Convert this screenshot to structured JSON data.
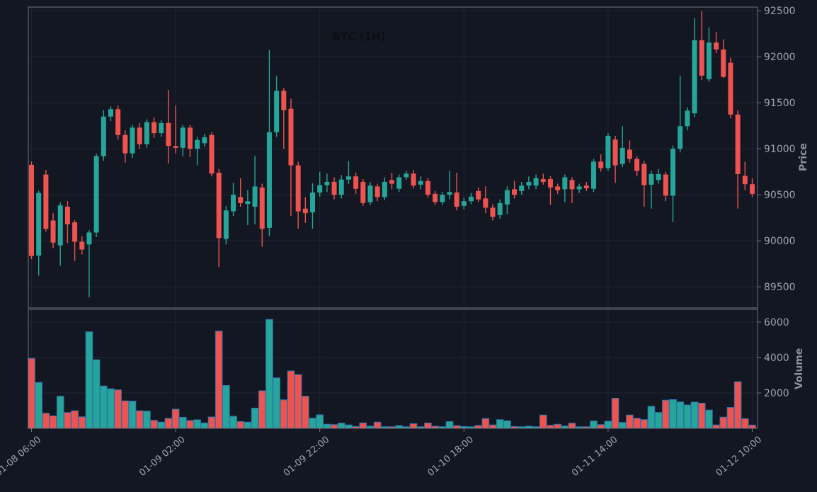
{
  "chart_data": {
    "type": "candlestick",
    "title": "BTC (1H)",
    "timeframe": "1H",
    "symbol": "BTC",
    "legend": "none",
    "grid": "on",
    "colors": {
      "background": "#131722",
      "up": "#26a69a",
      "down": "#ef5350",
      "grid": "#1f2434",
      "spine": "#6e7381",
      "tick_label": "#9fa3ad",
      "axis_label": "#8d919c",
      "title_color": "#0c0e13",
      "volume_bar_edge": "#2d72ae"
    },
    "price_axis": {
      "label": "Price",
      "side": "right",
      "ticks": [
        89500,
        90000,
        90500,
        91000,
        91500,
        92000,
        92500
      ],
      "ylim": [
        89270,
        92540
      ]
    },
    "volume_axis": {
      "label": "Volume",
      "side": "right",
      "ticks": [
        2000,
        4000,
        6000
      ],
      "ylim": [
        0,
        6720
      ]
    },
    "x_axis": {
      "tick_indices": [
        0,
        20,
        40,
        60,
        80,
        100
      ],
      "tick_labels": [
        "01-08 06:00",
        "01-09 02:00",
        "01-09 22:00",
        "01-10 18:00",
        "01-11 14:00",
        "01-12 10:00"
      ],
      "rotation_deg": -40
    },
    "candles_format": [
      "open",
      "high",
      "low",
      "close",
      "volume"
    ],
    "candles": [
      [
        90825,
        90860,
        89800,
        89835,
        3950
      ],
      [
        89840,
        90545,
        89620,
        90520,
        2590
      ],
      [
        90720,
        90770,
        90100,
        90130,
        850
      ],
      [
        90220,
        90300,
        89920,
        89980,
        700
      ],
      [
        89950,
        90420,
        89730,
        90385,
        1810
      ],
      [
        90370,
        90430,
        89975,
        90180,
        890
      ],
      [
        90200,
        90225,
        89780,
        89990,
        990
      ],
      [
        89990,
        90050,
        89850,
        89905,
        650
      ],
      [
        89960,
        90115,
        89385,
        90090,
        5450
      ],
      [
        90090,
        90945,
        90040,
        90920,
        3870
      ],
      [
        90920,
        91420,
        90870,
        91350,
        2390
      ],
      [
        91350,
        91460,
        91300,
        91430,
        2230
      ],
      [
        91430,
        91470,
        91100,
        91150,
        2170
      ],
      [
        91150,
        91200,
        90850,
        90950,
        1550
      ],
      [
        90950,
        91260,
        90900,
        91230,
        1530
      ],
      [
        91230,
        91280,
        91000,
        91050,
        990
      ],
      [
        91050,
        91320,
        91010,
        91290,
        970
      ],
      [
        91290,
        91340,
        91120,
        91170,
        450
      ],
      [
        91170,
        91310,
        91130,
        91280,
        350
      ],
      [
        91280,
        91640,
        90840,
        91030,
        560
      ],
      [
        91030,
        91470,
        90950,
        91010,
        1080
      ],
      [
        91010,
        91260,
        90920,
        91230,
        620
      ],
      [
        91230,
        91260,
        90910,
        91000,
        440
      ],
      [
        91000,
        91130,
        90820,
        91095,
        480
      ],
      [
        91060,
        91160,
        91020,
        91125,
        300
      ],
      [
        91150,
        91180,
        90700,
        90730,
        640
      ],
      [
        90740,
        90780,
        89715,
        90030,
        5490
      ],
      [
        90020,
        90380,
        89960,
        90330,
        2420
      ],
      [
        90320,
        90630,
        90270,
        90500,
        680
      ],
      [
        90475,
        90680,
        90370,
        90410,
        380
      ],
      [
        90400,
        90550,
        90170,
        90430,
        350
      ],
      [
        90370,
        90920,
        90180,
        90590,
        1140
      ],
      [
        90580,
        90620,
        89935,
        90130,
        2120
      ],
      [
        90140,
        92075,
        90050,
        91180,
        6150
      ],
      [
        91180,
        91790,
        91130,
        91630,
        2850
      ],
      [
        91630,
        91660,
        91000,
        91420,
        1610
      ],
      [
        91435,
        91545,
        90270,
        90820,
        3240
      ],
      [
        90820,
        90860,
        90130,
        90320,
        3030
      ],
      [
        90350,
        90475,
        90195,
        90300,
        1810
      ],
      [
        90310,
        90625,
        90130,
        90525,
        570
      ],
      [
        90525,
        90750,
        90480,
        90605,
        760
      ],
      [
        90605,
        90730,
        90530,
        90640,
        230
      ],
      [
        90640,
        90690,
        90450,
        90500,
        210
      ],
      [
        90500,
        90715,
        90460,
        90665,
        290
      ],
      [
        90665,
        90865,
        90620,
        90700,
        190
      ],
      [
        90700,
        90740,
        90510,
        90565,
        100
      ],
      [
        90640,
        90670,
        90380,
        90410,
        300
      ],
      [
        90420,
        90640,
        90390,
        90600,
        120
      ],
      [
        90590,
        90620,
        90430,
        90475,
        350
      ],
      [
        90475,
        90690,
        90440,
        90640,
        90
      ],
      [
        90660,
        90740,
        90560,
        90620,
        60
      ],
      [
        90565,
        90720,
        90530,
        90690,
        150
      ],
      [
        90690,
        90760,
        90660,
        90730,
        80
      ],
      [
        90730,
        90770,
        90570,
        90600,
        260
      ],
      [
        90610,
        90700,
        90560,
        90650,
        70
      ],
      [
        90650,
        90680,
        90470,
        90500,
        300
      ],
      [
        90510,
        90540,
        90390,
        90420,
        120
      ],
      [
        90420,
        90530,
        90390,
        90500,
        90
      ],
      [
        90500,
        90760,
        90450,
        90530,
        380
      ],
      [
        90525,
        90740,
        90330,
        90370,
        150
      ],
      [
        90380,
        90470,
        90340,
        90430,
        100
      ],
      [
        90430,
        90520,
        90400,
        90480,
        80
      ],
      [
        90540,
        90580,
        90420,
        90450,
        160
      ],
      [
        90460,
        90590,
        90300,
        90360,
        550
      ],
      [
        90360,
        90400,
        90220,
        90260,
        190
      ],
      [
        90280,
        90450,
        90240,
        90410,
        490
      ],
      [
        90395,
        90590,
        90290,
        90550,
        420
      ],
      [
        90560,
        90650,
        90460,
        90500,
        100
      ],
      [
        90540,
        90640,
        90500,
        90600,
        80
      ],
      [
        90600,
        90700,
        90560,
        90640,
        120
      ],
      [
        90600,
        90720,
        90560,
        90680,
        90
      ],
      [
        90670,
        90730,
        90610,
        90640,
        750
      ],
      [
        90670,
        90700,
        90390,
        90580,
        170
      ],
      [
        90590,
        90620,
        90510,
        90550,
        230
      ],
      [
        90560,
        90720,
        90420,
        90690,
        130
      ],
      [
        90660,
        90690,
        90410,
        90560,
        290
      ],
      [
        90560,
        90620,
        90520,
        90590,
        60
      ],
      [
        90600,
        90640,
        90540,
        90570,
        70
      ],
      [
        90565,
        90890,
        90530,
        90860,
        410
      ],
      [
        90860,
        90940,
        90750,
        90790,
        210
      ],
      [
        90790,
        91170,
        90760,
        91140,
        400
      ],
      [
        91100,
        91140,
        90630,
        90820,
        1700
      ],
      [
        90835,
        91245,
        90800,
        91010,
        330
      ],
      [
        90990,
        91090,
        90850,
        90890,
        750
      ],
      [
        90890,
        90920,
        90700,
        90760,
        565
      ],
      [
        90835,
        90870,
        90370,
        90605,
        490
      ],
      [
        90610,
        90760,
        90350,
        90725,
        1240
      ],
      [
        90660,
        90780,
        90620,
        90725,
        895
      ],
      [
        90720,
        90750,
        90430,
        90490,
        1590
      ],
      [
        90490,
        91035,
        90205,
        91000,
        1620
      ],
      [
        91000,
        91795,
        90960,
        91245,
        1490
      ],
      [
        91245,
        91450,
        91200,
        91415,
        1320
      ],
      [
        91385,
        92420,
        91345,
        92180,
        1480
      ],
      [
        92180,
        92495,
        91745,
        91795,
        1420
      ],
      [
        91757,
        92320,
        91730,
        92155,
        1030
      ],
      [
        92155,
        92270,
        92040,
        92080,
        190
      ],
      [
        92080,
        92190,
        91770,
        91782,
        630
      ],
      [
        91935,
        91990,
        91330,
        91372,
        1180
      ],
      [
        91372,
        91420,
        90350,
        90725,
        2630
      ],
      [
        90705,
        90860,
        90550,
        90615,
        540
      ],
      [
        90615,
        90680,
        90475,
        90510,
        180
      ]
    ]
  }
}
